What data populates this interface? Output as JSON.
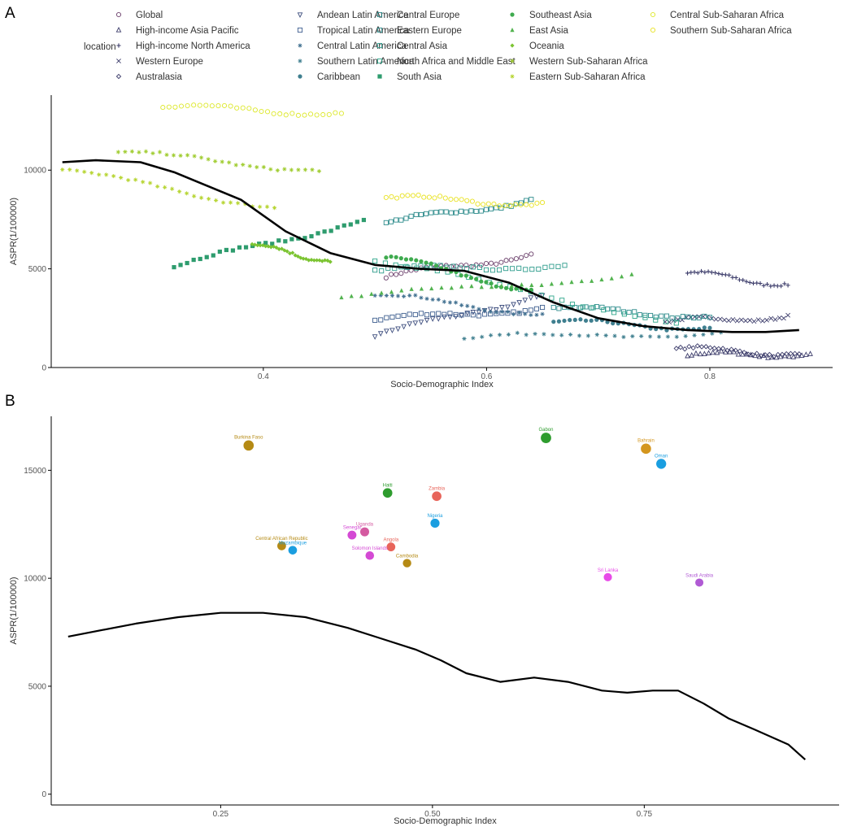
{
  "panel_a_letter": "A",
  "panel_b_letter": "B",
  "chart_data": [
    {
      "type": "scatter",
      "panel": "A",
      "xlabel": "Socio-Demographic Index",
      "ylabel": "ASPR(1/100000)",
      "xlim": [
        0.21,
        0.91
      ],
      "ylim": [
        0,
        13800
      ],
      "xticks": [
        {
          "value": 0.4,
          "label": "0.4"
        },
        {
          "value": 0.6,
          "label": "0.6"
        },
        {
          "value": 0.8,
          "label": "0.8"
        }
      ],
      "yticks": [
        {
          "value": 0,
          "label": "0"
        },
        {
          "value": 5000,
          "label": "5000"
        },
        {
          "value": 10000,
          "label": "10000"
        }
      ],
      "legend": {
        "title": "location",
        "position": "top",
        "columns": [
          [
            "Global",
            "High-income Asia Pacific",
            "High-income North America",
            "Western Europe",
            "Australasia"
          ],
          [
            "Andean Latin America",
            "Tropical Latin America",
            "Central Latin America",
            "Southern Latin America",
            "Caribbean"
          ],
          [
            "Central Europe",
            "Eastern Europe",
            "Central Asia",
            "North Africa and Middle East",
            "South Asia"
          ],
          [
            "Southeast Asia",
            "East Asia",
            "Oceania",
            "Western Sub-Saharan Africa",
            "Eastern Sub-Saharan Africa"
          ],
          [
            "Central Sub-Saharan Africa",
            "Southern Sub-Saharan Africa"
          ]
        ]
      },
      "series": [
        {
          "name": "Global",
          "color": "#6b3f6b",
          "shape": "circle-open",
          "x_range": [
            0.51,
            0.64
          ],
          "y_start": 4600,
          "y_end": 5700
        },
        {
          "name": "High-income Asia Pacific",
          "color": "#3d3d6b",
          "shape": "triangle-open",
          "x_range": [
            0.78,
            0.89
          ],
          "y_start": 600,
          "y_end": 700
        },
        {
          "name": "High-income North America",
          "color": "#3d3d6b",
          "shape": "plus",
          "x_range": [
            0.78,
            0.87
          ],
          "y_start": 4800,
          "y_end": 4200
        },
        {
          "name": "Western Europe",
          "color": "#3d3d6b",
          "shape": "cross",
          "x_range": [
            0.76,
            0.87
          ],
          "y_start": 2300,
          "y_end": 2600
        },
        {
          "name": "Australasia",
          "color": "#3d3d6b",
          "shape": "diamond-open",
          "x_range": [
            0.77,
            0.88
          ],
          "y_start": 950,
          "y_end": 700
        },
        {
          "name": "Andean Latin America",
          "color": "#3f4f7f",
          "shape": "triangle-down-open",
          "x_range": [
            0.5,
            0.65
          ],
          "y_start": 1600,
          "y_end": 3700
        },
        {
          "name": "Tropical Latin America",
          "color": "#3f5f8f",
          "shape": "square-open",
          "x_range": [
            0.5,
            0.65
          ],
          "y_start": 2400,
          "y_end": 3000
        },
        {
          "name": "Central Latin America",
          "color": "#3f6f8f",
          "shape": "asterisk",
          "x_range": [
            0.5,
            0.65
          ],
          "y_start": 3700,
          "y_end": 2700
        },
        {
          "name": "Southern Latin America",
          "color": "#3f7f8f",
          "shape": "circle-plus",
          "x_range": [
            0.58,
            0.81
          ],
          "y_start": 1500,
          "y_end": 1750
        },
        {
          "name": "Caribbean",
          "color": "#3f7f8f",
          "shape": "circle",
          "x_range": [
            0.66,
            0.8
          ],
          "y_start": 2300,
          "y_end": 2000
        },
        {
          "name": "Central Europe",
          "color": "#2e8c8c",
          "shape": "square-x",
          "x_range": [
            0.66,
            0.8
          ],
          "y_start": 3000,
          "y_end": 2600
        },
        {
          "name": "Eastern Europe",
          "color": "#2e8c8c",
          "shape": "square-plus",
          "x_range": [
            0.51,
            0.64
          ],
          "y_start": 7300,
          "y_end": 8500
        },
        {
          "name": "Central Asia",
          "color": "#2e9c8c",
          "shape": "square-circle",
          "x_range": [
            0.5,
            0.67
          ],
          "y_start": 4900,
          "y_end": 5200
        },
        {
          "name": "North Africa and Middle East",
          "color": "#2ea68a",
          "shape": "square-open",
          "x_range": [
            0.5,
            0.77
          ],
          "y_start": 5400,
          "y_end": 2300
        },
        {
          "name": "South Asia",
          "color": "#2e9c6e",
          "shape": "square",
          "x_range": [
            0.32,
            0.49
          ],
          "y_start": 5100,
          "y_end": 7500
        },
        {
          "name": "Southeast Asia",
          "color": "#3fab4f",
          "shape": "circle",
          "x_range": [
            0.51,
            0.64
          ],
          "y_start": 5600,
          "y_end": 3900
        },
        {
          "name": "East Asia",
          "color": "#52b34f",
          "shape": "triangle",
          "x_range": [
            0.47,
            0.73
          ],
          "y_start": 3500,
          "y_end": 4700
        },
        {
          "name": "Oceania",
          "color": "#7cc432",
          "shape": "diamond",
          "x_range": [
            0.39,
            0.46
          ],
          "y_start": 6200,
          "y_end": 5400
        },
        {
          "name": "Western Sub-Saharan Africa",
          "color": "#9fcc2e",
          "shape": "asterisk",
          "x_range": [
            0.27,
            0.45
          ],
          "y_start": 10900,
          "y_end": 10000
        },
        {
          "name": "Eastern Sub-Saharan Africa",
          "color": "#b5d42e",
          "shape": "star",
          "x_range": [
            0.22,
            0.41
          ],
          "y_start": 10000,
          "y_end": 8100
        },
        {
          "name": "Central Sub-Saharan Africa",
          "color": "#dde82a",
          "shape": "circle-open",
          "x_range": [
            0.31,
            0.47
          ],
          "y_start": 13200,
          "y_end": 12900
        },
        {
          "name": "Southern Sub-Saharan Africa",
          "color": "#e8e21e",
          "shape": "circle-open",
          "x_range": [
            0.51,
            0.65
          ],
          "y_start": 8600,
          "y_end": 8300
        }
      ],
      "trend": {
        "x": [
          0.22,
          0.25,
          0.29,
          0.32,
          0.35,
          0.38,
          0.42,
          0.46,
          0.5,
          0.54,
          0.58,
          0.62,
          0.66,
          0.7,
          0.74,
          0.78,
          0.82,
          0.85,
          0.88
        ],
        "y": [
          10400,
          10500,
          10400,
          9900,
          9200,
          8500,
          6900,
          5800,
          5200,
          5000,
          4900,
          4300,
          3300,
          2500,
          2100,
          1900,
          1800,
          1800,
          1900
        ]
      }
    },
    {
      "type": "scatter",
      "panel": "B",
      "xlabel": "Socio-Demographic Index",
      "ylabel": "ASPR(1/100000)",
      "xlim": [
        0.05,
        0.98
      ],
      "ylim": [
        -500,
        17500
      ],
      "xticks": [
        {
          "value": 0.25,
          "label": "0.25"
        },
        {
          "value": 0.5,
          "label": "0.50"
        },
        {
          "value": 0.75,
          "label": "0.75"
        }
      ],
      "yticks": [
        {
          "value": 0,
          "label": "0"
        },
        {
          "value": 5000,
          "label": "5000"
        },
        {
          "value": 10000,
          "label": "10000"
        },
        {
          "value": 15000,
          "label": "15000"
        }
      ],
      "points": [
        {
          "label": "Gabon",
          "x": 0.634,
          "y": 16500,
          "color": "#2e9c2e"
        },
        {
          "label": "Burkina Faso",
          "x": 0.283,
          "y": 16150,
          "color": "#b58a14"
        },
        {
          "label": "Bahrain",
          "x": 0.752,
          "y": 16000,
          "color": "#d4961e"
        },
        {
          "label": "Oman",
          "x": 0.77,
          "y": 15300,
          "color": "#1a9ee0"
        },
        {
          "label": "Haiti",
          "x": 0.447,
          "y": 13950,
          "color": "#2e9c2e"
        },
        {
          "label": "Zambia",
          "x": 0.505,
          "y": 13800,
          "color": "#e8645a"
        },
        {
          "label": "Nigeria",
          "x": 0.503,
          "y": 12550,
          "color": "#1a9ee0"
        },
        {
          "label": "Uganda",
          "x": 0.42,
          "y": 12150,
          "color": "#d45aa0"
        },
        {
          "label": "Senegal",
          "x": 0.405,
          "y": 12000,
          "color": "#d44ad4"
        },
        {
          "label": "Central African Republic",
          "x": 0.322,
          "y": 11500,
          "color": "#b58a14"
        },
        {
          "label": "Angola",
          "x": 0.451,
          "y": 11450,
          "color": "#e8645a"
        },
        {
          "label": "Mozambique",
          "x": 0.335,
          "y": 11300,
          "color": "#1a9ee0"
        },
        {
          "label": "Solomon Islands",
          "x": 0.426,
          "y": 11050,
          "color": "#d44ad4"
        },
        {
          "label": "Cambodia",
          "x": 0.47,
          "y": 10700,
          "color": "#b58a14"
        },
        {
          "label": "Sri Lanka",
          "x": 0.707,
          "y": 10050,
          "color": "#e84ae8"
        },
        {
          "label": "Saudi Arabia",
          "x": 0.815,
          "y": 9800,
          "color": "#b05ad4"
        }
      ],
      "trend": {
        "x": [
          0.07,
          0.15,
          0.2,
          0.25,
          0.3,
          0.35,
          0.4,
          0.44,
          0.48,
          0.51,
          0.54,
          0.58,
          0.62,
          0.66,
          0.7,
          0.73,
          0.76,
          0.79,
          0.82,
          0.85,
          0.88,
          0.92,
          0.94
        ],
        "y": [
          7300,
          7900,
          8200,
          8400,
          8400,
          8200,
          7700,
          7200,
          6700,
          6200,
          5600,
          5200,
          5400,
          5200,
          4800,
          4700,
          4800,
          4800,
          4200,
          3500,
          3000,
          2300,
          1600
        ]
      }
    }
  ]
}
